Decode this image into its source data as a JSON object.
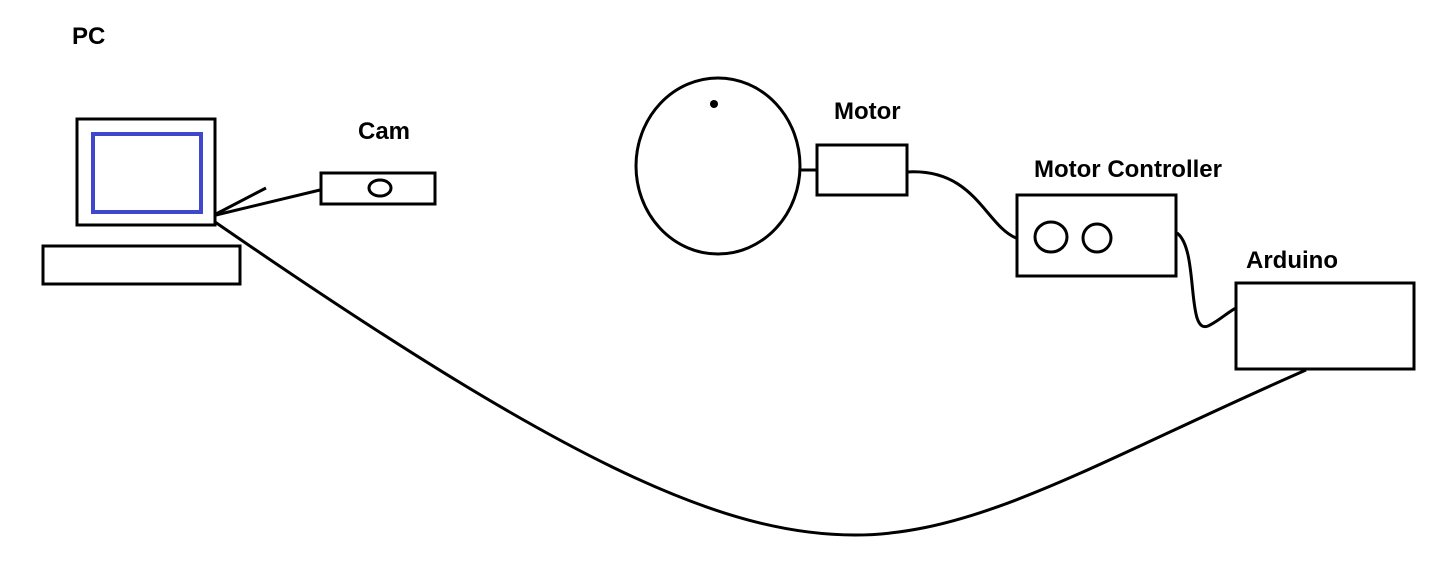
{
  "labels": {
    "pc": "PC",
    "cam": "Cam",
    "motor": "Motor",
    "motor_controller": "Motor Controller",
    "arduino": "Arduino"
  },
  "colors": {
    "stroke": "#000000",
    "screen": "#3f48cc",
    "background": "#ffffff"
  }
}
